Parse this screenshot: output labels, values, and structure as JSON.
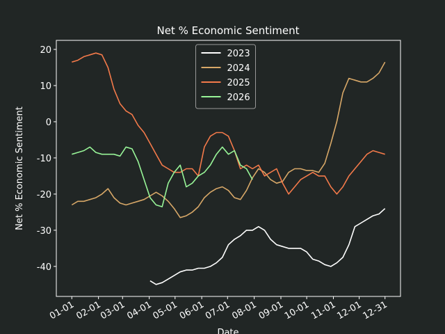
{
  "chart_data": {
    "type": "line",
    "title": "Net % Economic Sentiment",
    "xlabel": "Date",
    "ylabel": "Net % Economic Sentiment",
    "x": [
      1,
      8,
      15,
      22,
      29,
      36,
      43,
      50,
      57,
      64,
      71,
      78,
      85,
      92,
      99,
      106,
      113,
      120,
      127,
      134,
      141,
      148,
      155,
      162,
      169,
      176,
      183,
      190,
      197,
      204,
      211,
      218,
      225,
      232,
      239,
      246,
      253,
      260,
      267,
      274,
      281,
      288,
      295,
      302,
      309,
      316,
      323,
      330,
      337,
      344,
      351,
      358,
      365
    ],
    "series": [
      {
        "name": "2023",
        "color": "#ffffff",
        "values": [
          null,
          null,
          null,
          null,
          null,
          null,
          null,
          null,
          null,
          null,
          null,
          null,
          null,
          -44,
          -45,
          -44.5,
          -43.5,
          -42.5,
          -41.5,
          -41,
          -41,
          -40.5,
          -40.5,
          -40,
          -39,
          -37.5,
          -34,
          -32.5,
          -31.5,
          -30,
          -30,
          -29,
          -30,
          -32.5,
          -34,
          -34.5,
          -35,
          -35,
          -35,
          -36,
          -38,
          -38.5,
          -39.5,
          -40,
          -39,
          -37.5,
          -34,
          -29,
          -28,
          -27,
          -26,
          -25.5,
          -24
        ]
      },
      {
        "name": "2024",
        "color": "#d8a868",
        "values": [
          -23,
          -22,
          -22,
          -21.5,
          -21,
          -20,
          -18.5,
          -21,
          -22.5,
          -23,
          -22.5,
          -22,
          -21.5,
          -20.5,
          -19.5,
          -20.5,
          -22,
          -24,
          -26.5,
          -26,
          -25,
          -23.5,
          -21,
          -19.5,
          -18.5,
          -18,
          -19,
          -21,
          -21.5,
          -19,
          -15.5,
          -13,
          -14,
          -16,
          -17,
          -16.5,
          -14,
          -13,
          -13,
          -13.5,
          -13.5,
          -14,
          -11.5,
          -6,
          0,
          8,
          12,
          11.5,
          11,
          11,
          12,
          13.5,
          16.5
        ]
      },
      {
        "name": "2025",
        "color": "#f47a4a",
        "values": [
          16.5,
          17,
          18,
          18.5,
          19,
          18.5,
          15,
          9,
          5,
          3,
          2,
          -1,
          -3,
          -6,
          -9,
          -12,
          -13,
          -14,
          -14,
          -13,
          -13,
          -15,
          -7,
          -4,
          -3,
          -3,
          -4,
          -8,
          -13,
          -12,
          -13,
          -12,
          -15,
          -14,
          -13,
          -17,
          -20,
          -18,
          -16,
          -15,
          -14,
          -15,
          -15,
          -18,
          -20,
          -18,
          -15,
          -13,
          -11,
          -9,
          -8,
          -8.5,
          -9
        ]
      },
      {
        "name": "2026",
        "color": "#98f598",
        "values": [
          -9,
          -8.5,
          -8,
          -7,
          -8.5,
          -9,
          -9,
          -9,
          -9.5,
          -7,
          -7.5,
          -11,
          -16,
          -21,
          -23,
          -23.5,
          -17,
          -14,
          -12,
          -18,
          -17,
          -15,
          -14,
          -12,
          -9,
          -7,
          -9,
          -8,
          -12,
          -13,
          -16,
          null,
          null,
          null,
          null,
          null,
          null,
          null,
          null,
          null,
          null,
          null,
          null,
          null,
          null,
          null,
          null,
          null,
          null,
          null,
          null,
          null,
          null
        ]
      }
    ],
    "xlim": [
      -17,
      383
    ],
    "xticks": [
      {
        "value": 1,
        "label": "01-01"
      },
      {
        "value": 32,
        "label": "02-01"
      },
      {
        "value": 60,
        "label": "03-01"
      },
      {
        "value": 91,
        "label": "04-01"
      },
      {
        "value": 121,
        "label": "05-01"
      },
      {
        "value": 152,
        "label": "06-01"
      },
      {
        "value": 182,
        "label": "07-01"
      },
      {
        "value": 213,
        "label": "08-01"
      },
      {
        "value": 244,
        "label": "09-01"
      },
      {
        "value": 274,
        "label": "10-01"
      },
      {
        "value": 305,
        "label": "11-01"
      },
      {
        "value": 335,
        "label": "12-01"
      },
      {
        "value": 365,
        "label": "12-31"
      }
    ],
    "ylim": [
      -48.3,
      22.5
    ],
    "yticks": [
      -40,
      -30,
      -20,
      -10,
      0,
      10,
      20
    ],
    "legend": "upper center"
  }
}
